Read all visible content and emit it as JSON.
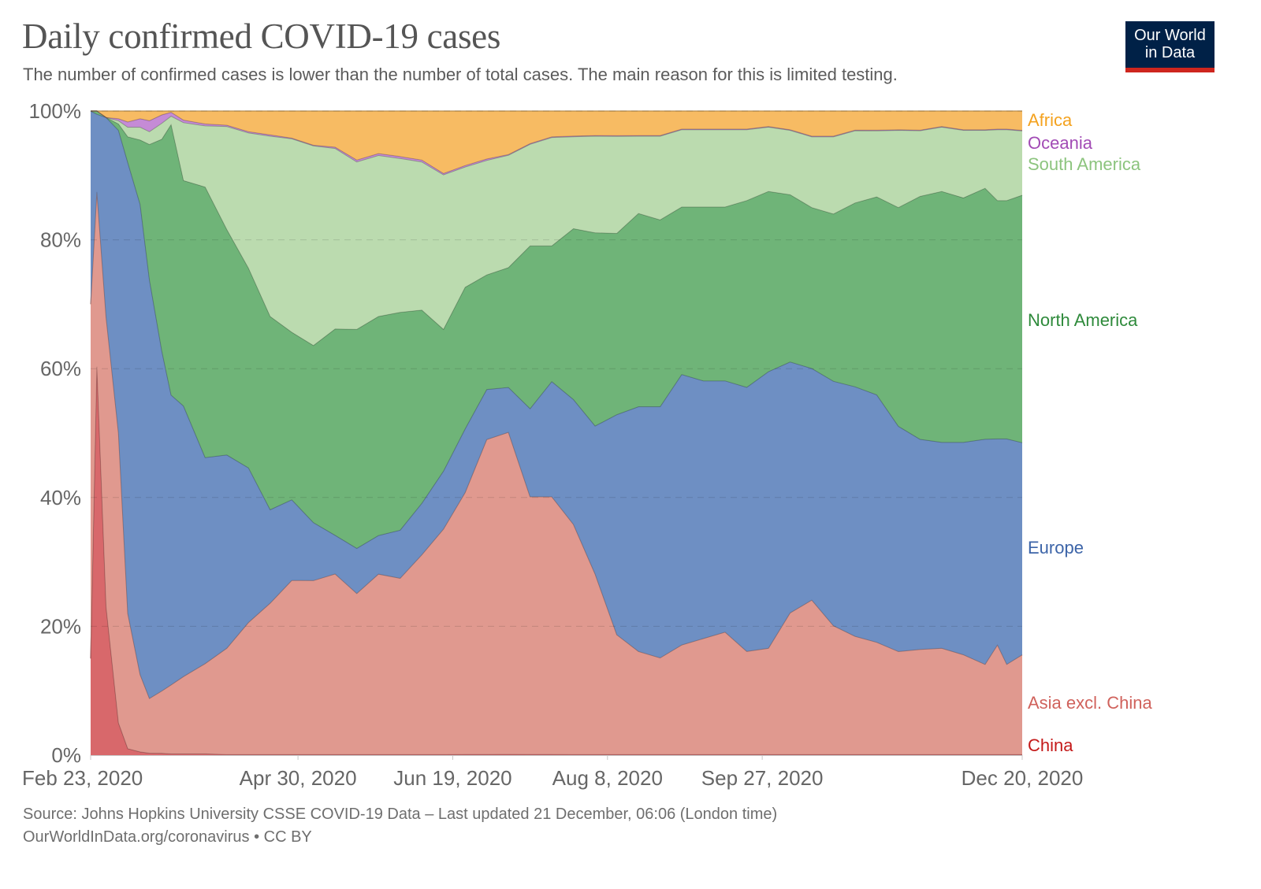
{
  "header": {
    "title": "Daily confirmed COVID-19 cases",
    "subtitle": "The number of confirmed cases is lower than the number of total cases. The main reason for this is limited testing."
  },
  "logo": {
    "line1": "Our World",
    "line2": "in Data",
    "bg_color": "#002147",
    "accent_color": "#ce261e"
  },
  "footer": {
    "source": "Source: Johns Hopkins University CSSE COVID-19 Data – Last updated 21 December, 06:06 (London time)",
    "license": "OurWorldInData.org/coronavirus • CC BY"
  },
  "chart_data": {
    "type": "area",
    "stacked": true,
    "normalized": true,
    "title": "Daily confirmed COVID-19 cases",
    "subtitle": "The number of confirmed cases is lower than the number of total cases. The main reason for this is limited testing.",
    "xlabel": "",
    "ylabel": "",
    "ylim": [
      0,
      100
    ],
    "y_ticks": [
      {
        "value": 0,
        "label": "0%"
      },
      {
        "value": 20,
        "label": "20%"
      },
      {
        "value": 40,
        "label": "40%"
      },
      {
        "value": 60,
        "label": "60%"
      },
      {
        "value": 80,
        "label": "80%"
      },
      {
        "value": 100,
        "label": "100%"
      }
    ],
    "x_range_days": [
      0,
      301
    ],
    "x_ticks": [
      {
        "day": 0,
        "label": "Feb 23, 2020"
      },
      {
        "day": 67,
        "label": "Apr 30, 2020"
      },
      {
        "day": 117,
        "label": "Jun 19, 2020"
      },
      {
        "day": 167,
        "label": "Aug 8, 2020"
      },
      {
        "day": 217,
        "label": "Sep 27, 2020"
      },
      {
        "day": 301,
        "label": "Dec 20, 2020"
      }
    ],
    "grid": true,
    "legend": "right (labels at series ends)",
    "x_days": [
      0,
      2,
      5,
      9,
      12,
      16,
      19,
      23,
      26,
      30,
      37,
      44,
      51,
      58,
      65,
      72,
      79,
      86,
      93,
      100,
      107,
      114,
      121,
      128,
      135,
      142,
      149,
      156,
      163,
      170,
      177,
      184,
      191,
      198,
      205,
      212,
      219,
      226,
      233,
      240,
      247,
      254,
      261,
      268,
      275,
      282,
      289,
      293,
      296,
      301
    ],
    "series": [
      {
        "name": "China",
        "color": "#d8686b",
        "label_color": "#c41a1a",
        "values": [
          15,
          60,
          23,
          5,
          1,
          0.5,
          0.3,
          0.3,
          0.2,
          0.2,
          0.2,
          0.1,
          0.1,
          0.1,
          0.1,
          0.1,
          0.1,
          0.1,
          0.1,
          0.1,
          0.1,
          0.1,
          0.1,
          0.1,
          0.1,
          0.1,
          0.1,
          0.1,
          0.1,
          0.1,
          0.1,
          0.1,
          0.1,
          0.1,
          0.1,
          0.1,
          0.1,
          0.1,
          0.1,
          0.1,
          0.1,
          0.1,
          0.1,
          0.1,
          0.1,
          0.1,
          0.1,
          0.1,
          0.1,
          0.1
        ]
      },
      {
        "name": "Asia excl. China",
        "color": "#e0998f",
        "label_color": "#d0625c",
        "values": [
          55,
          27,
          45,
          45,
          21,
          12,
          8.5,
          9.7,
          10.7,
          12,
          14,
          16.5,
          20.5,
          23.5,
          27,
          27,
          28,
          25,
          28,
          27.5,
          31,
          35,
          37,
          44,
          43,
          38,
          38,
          35,
          28,
          18.5,
          16,
          15,
          17,
          18,
          19,
          16,
          16.5,
          22,
          24,
          20,
          18,
          17,
          16,
          16,
          16.5,
          15.5,
          14,
          17,
          14,
          15.5
        ]
      },
      {
        "name": "Europe",
        "color": "#6e8fc3",
        "label_color": "#3c64a8",
        "values": [
          30,
          12,
          31,
          47,
          70,
          73,
          65,
          53,
          45,
          42,
          32,
          30,
          24,
          14.5,
          12.5,
          9,
          6,
          7,
          6,
          7.5,
          8,
          9,
          9,
          7,
          6,
          13,
          17,
          19,
          23,
          34,
          38,
          39,
          42,
          40,
          39,
          41,
          43,
          39,
          36,
          38,
          38,
          37.5,
          35,
          32,
          32,
          33,
          35,
          32,
          35,
          33
        ]
      },
      {
        "name": "North America",
        "color": "#6fb478",
        "label_color": "#2e8a3b",
        "values": [
          0,
          0.5,
          0,
          1,
          4,
          10,
          21,
          33,
          42,
          35,
          42,
          35,
          31,
          30,
          26,
          27.5,
          32,
          34,
          34,
          34,
          30,
          22,
          20,
          16,
          16,
          24,
          20,
          26,
          30,
          28,
          30,
          29,
          26,
          27,
          27,
          29,
          28,
          26,
          25,
          26,
          28,
          30,
          34,
          37,
          39,
          38,
          39,
          37,
          37,
          38.5
        ]
      },
      {
        "name": "South America",
        "color": "#bbdbaf",
        "label_color": "#8cc47e",
        "values": [
          0,
          0,
          0,
          0.5,
          1.5,
          2,
          2,
          2.5,
          1.3,
          9,
          9.5,
          16,
          21,
          28,
          30,
          31,
          28,
          26,
          25,
          24,
          23,
          24,
          17,
          16,
          15,
          15,
          16,
          14,
          15,
          15,
          12,
          13,
          12,
          12,
          12,
          11,
          10,
          10,
          11,
          12,
          11,
          10,
          12,
          10,
          10,
          10.5,
          9,
          11,
          11,
          10
        ]
      },
      {
        "name": "Oceania",
        "color": "#c58bd6",
        "label_color": "#a24bb5",
        "values": [
          0,
          0,
          0,
          0.3,
          0.8,
          1.3,
          1.7,
          1.3,
          0.6,
          0.4,
          0.3,
          0.2,
          0.2,
          0.2,
          0.1,
          0.1,
          0.2,
          0.3,
          0.3,
          0.3,
          0.3,
          0.2,
          0.2,
          0.2,
          0.1,
          0.1,
          0.1,
          0.1,
          0.1,
          0.1,
          0.1,
          0.1,
          0.1,
          0.1,
          0.1,
          0.1,
          0.1,
          0.1,
          0.1,
          0.1,
          0.1,
          0.1,
          0.1,
          0.1,
          0.1,
          0.1,
          0.1,
          0.1,
          0.1,
          0.1
        ]
      },
      {
        "name": "Africa",
        "color": "#f7bb63",
        "label_color": "#f4a21f",
        "values": [
          0,
          0,
          1,
          1.2,
          1.7,
          1.2,
          1.5,
          0.6,
          0.2,
          1.4,
          2,
          2.2,
          3.2,
          3.7,
          4.2,
          5.3,
          5.6,
          7.6,
          6.6,
          7.1,
          7.6,
          9.7,
          7.7,
          6.7,
          5.8,
          4.8,
          3.8,
          3.8,
          3.8,
          3.8,
          3.8,
          3.8,
          2.8,
          2.8,
          2.8,
          2.8,
          2.4,
          2.9,
          3.9,
          3.9,
          2.9,
          2.9,
          2.9,
          2.9,
          2.4,
          2.9,
          2.9,
          2.8,
          2.8,
          3
        ]
      }
    ]
  }
}
